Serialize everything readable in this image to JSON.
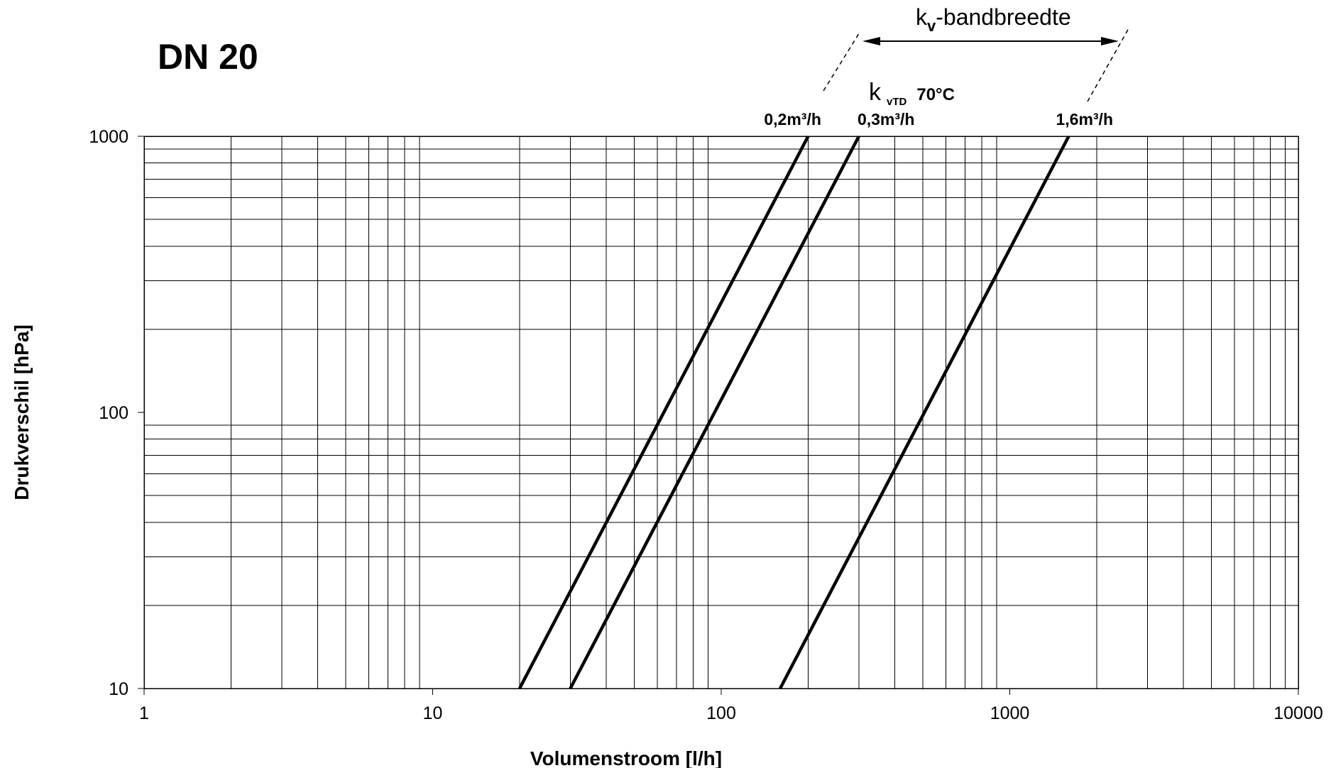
{
  "chart_data": {
    "type": "line",
    "title": "DN 20",
    "xlabel": "Volumenstroom [l/h]",
    "ylabel": "Drukverschil [hPa]",
    "xscale": "log",
    "yscale": "log",
    "xlim": [
      1,
      10000
    ],
    "ylim": [
      10,
      1000
    ],
    "x_ticks": [
      "1",
      "10",
      "100",
      "1000",
      "10000"
    ],
    "y_ticks": [
      "10",
      "100",
      "1000"
    ],
    "grid": true,
    "legend": "none",
    "series": [
      {
        "name": "0,2m³/h",
        "x": [
          20,
          200
        ],
        "y": [
          10,
          1000
        ]
      },
      {
        "name": "0,3m³/h",
        "x": [
          30,
          300
        ],
        "y": [
          10,
          1000
        ]
      },
      {
        "name": "1,6m³/h",
        "x": [
          160,
          1600
        ],
        "y": [
          10,
          1000
        ]
      }
    ],
    "annotations": {
      "kvtd_k": "k",
      "kvtd_sub": "vTD",
      "kvtd_temp": "70°C",
      "bandwidth_k": "k",
      "bandwidth_sub": "v",
      "bandwidth_rest": "-bandbreedte"
    }
  }
}
